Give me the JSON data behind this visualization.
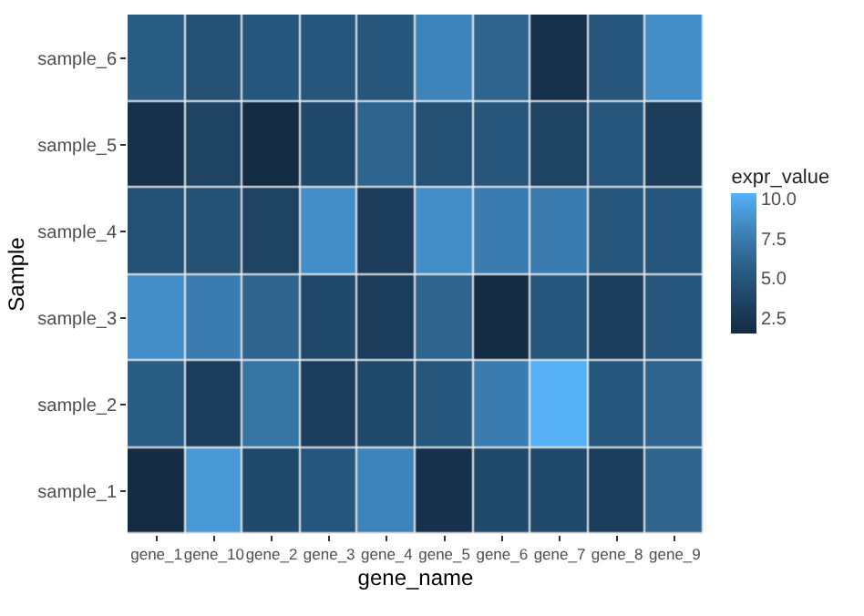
{
  "chart_data": {
    "type": "heatmap",
    "xlabel": "gene_name",
    "ylabel": "Sample",
    "clabel": "expr_value",
    "categories": [
      "gene_1",
      "gene_10",
      "gene_2",
      "gene_3",
      "gene_4",
      "gene_5",
      "gene_6",
      "gene_7",
      "gene_8",
      "gene_9"
    ],
    "y_categories": [
      "sample_6",
      "sample_5",
      "sample_4",
      "sample_3",
      "sample_2",
      "sample_1"
    ],
    "cells": [
      [
        5.5,
        4.5,
        5,
        5,
        5,
        8,
        6,
        2,
        5,
        8.5
      ],
      [
        2,
        3.5,
        1.5,
        4,
        6,
        4.5,
        5,
        3.5,
        5,
        3
      ],
      [
        4.5,
        4.5,
        3.5,
        8.5,
        3,
        8.5,
        7.5,
        7.5,
        5,
        5
      ],
      [
        8.5,
        7.5,
        6,
        4,
        3,
        6,
        1.5,
        5,
        3,
        5
      ],
      [
        5.5,
        3,
        7,
        3,
        4,
        5,
        7.5,
        10.3,
        5,
        6
      ],
      [
        1.5,
        9,
        4,
        5,
        8,
        2,
        4,
        4,
        3,
        6
      ]
    ],
    "clim": [
      1.5,
      10.3
    ],
    "cticks": [
      2.5,
      {
        "value": 5,
        "label": "5.0"
      },
      7.5,
      {
        "value": 10,
        "label": "10.0"
      }
    ]
  }
}
